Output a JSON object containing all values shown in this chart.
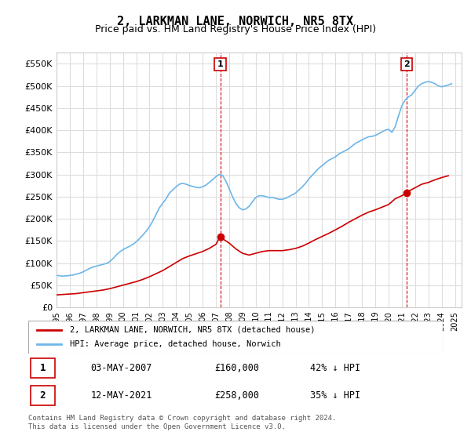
{
  "title": "2, LARKMAN LANE, NORWICH, NR5 8TX",
  "subtitle": "Price paid vs. HM Land Registry's House Price Index (HPI)",
  "ylabel": "",
  "ylim": [
    0,
    575000
  ],
  "yticks": [
    0,
    50000,
    100000,
    150000,
    200000,
    250000,
    300000,
    350000,
    400000,
    450000,
    500000,
    550000
  ],
  "ytick_labels": [
    "£0",
    "£50K",
    "£100K",
    "£150K",
    "£200K",
    "£250K",
    "£300K",
    "£350K",
    "£400K",
    "£450K",
    "£500K",
    "£550K"
  ],
  "xlim_start": 1995.0,
  "xlim_end": 2025.5,
  "hpi_color": "#6db6e8",
  "property_color": "#cc0000",
  "marker1_year": 2007.33,
  "marker1_price": 160000,
  "marker1_label": "1",
  "marker1_date": "03-MAY-2007",
  "marker1_amount": "£160,000",
  "marker1_pct": "42% ↓ HPI",
  "marker2_year": 2021.36,
  "marker2_price": 258000,
  "marker2_label": "2",
  "marker2_date": "12-MAY-2021",
  "marker2_amount": "£258,000",
  "marker2_pct": "35% ↓ HPI",
  "legend_line1": "2, LARKMAN LANE, NORWICH, NR5 8TX (detached house)",
  "legend_line2": "HPI: Average price, detached house, Norwich",
  "footer": "Contains HM Land Registry data © Crown copyright and database right 2024.\nThis data is licensed under the Open Government Licence v3.0.",
  "background_color": "#ffffff",
  "grid_color": "#dddddd",
  "hpi_data": {
    "years": [
      1995.0,
      1995.25,
      1995.5,
      1995.75,
      1996.0,
      1996.25,
      1996.5,
      1996.75,
      1997.0,
      1997.25,
      1997.5,
      1997.75,
      1998.0,
      1998.25,
      1998.5,
      1998.75,
      1999.0,
      1999.25,
      1999.5,
      1999.75,
      2000.0,
      2000.25,
      2000.5,
      2000.75,
      2001.0,
      2001.25,
      2001.5,
      2001.75,
      2002.0,
      2002.25,
      2002.5,
      2002.75,
      2003.0,
      2003.25,
      2003.5,
      2003.75,
      2004.0,
      2004.25,
      2004.5,
      2004.75,
      2005.0,
      2005.25,
      2005.5,
      2005.75,
      2006.0,
      2006.25,
      2006.5,
      2006.75,
      2007.0,
      2007.25,
      2007.5,
      2007.75,
      2008.0,
      2008.25,
      2008.5,
      2008.75,
      2009.0,
      2009.25,
      2009.5,
      2009.75,
      2010.0,
      2010.25,
      2010.5,
      2010.75,
      2011.0,
      2011.25,
      2011.5,
      2011.75,
      2012.0,
      2012.25,
      2012.5,
      2012.75,
      2013.0,
      2013.25,
      2013.5,
      2013.75,
      2014.0,
      2014.25,
      2014.5,
      2014.75,
      2015.0,
      2015.25,
      2015.5,
      2015.75,
      2016.0,
      2016.25,
      2016.5,
      2016.75,
      2017.0,
      2017.25,
      2017.5,
      2017.75,
      2018.0,
      2018.25,
      2018.5,
      2018.75,
      2019.0,
      2019.25,
      2019.5,
      2019.75,
      2020.0,
      2020.25,
      2020.5,
      2020.75,
      2021.0,
      2021.25,
      2021.5,
      2021.75,
      2022.0,
      2022.25,
      2022.5,
      2022.75,
      2023.0,
      2023.25,
      2023.5,
      2023.75,
      2024.0,
      2024.25,
      2024.5,
      2024.75
    ],
    "values": [
      72000,
      71000,
      70500,
      71000,
      72000,
      73000,
      75000,
      77000,
      80000,
      84000,
      88000,
      91000,
      93000,
      95000,
      97000,
      99000,
      103000,
      110000,
      118000,
      125000,
      130000,
      134000,
      138000,
      142000,
      148000,
      155000,
      163000,
      172000,
      182000,
      195000,
      210000,
      225000,
      235000,
      245000,
      258000,
      265000,
      272000,
      278000,
      280000,
      278000,
      275000,
      273000,
      271000,
      270000,
      272000,
      276000,
      282000,
      288000,
      295000,
      300000,
      298000,
      285000,
      268000,
      250000,
      235000,
      225000,
      220000,
      222000,
      228000,
      238000,
      248000,
      252000,
      252000,
      250000,
      248000,
      248000,
      246000,
      244000,
      244000,
      246000,
      250000,
      254000,
      258000,
      265000,
      272000,
      280000,
      290000,
      298000,
      306000,
      314000,
      320000,
      326000,
      332000,
      336000,
      340000,
      346000,
      350000,
      354000,
      358000,
      364000,
      370000,
      374000,
      378000,
      382000,
      385000,
      386000,
      388000,
      392000,
      396000,
      400000,
      402000,
      395000,
      408000,
      432000,
      455000,
      468000,
      475000,
      480000,
      490000,
      500000,
      505000,
      508000,
      510000,
      508000,
      505000,
      500000,
      498000,
      500000,
      502000,
      505000
    ]
  },
  "property_data": {
    "years": [
      1995.0,
      1995.5,
      1996.0,
      1996.5,
      1997.0,
      1997.5,
      1998.0,
      1998.5,
      1999.0,
      1999.5,
      2000.0,
      2000.5,
      2001.0,
      2001.5,
      2002.0,
      2002.5,
      2003.0,
      2003.5,
      2004.0,
      2004.5,
      2005.0,
      2005.5,
      2006.0,
      2006.5,
      2007.0,
      2007.33,
      2007.5,
      2008.0,
      2008.5,
      2009.0,
      2009.5,
      2010.0,
      2010.5,
      2011.0,
      2011.5,
      2012.0,
      2012.5,
      2013.0,
      2013.5,
      2014.0,
      2014.5,
      2015.0,
      2015.5,
      2016.0,
      2016.5,
      2017.0,
      2017.5,
      2018.0,
      2018.5,
      2019.0,
      2019.5,
      2020.0,
      2020.5,
      2021.0,
      2021.36,
      2021.5,
      2022.0,
      2022.5,
      2023.0,
      2023.5,
      2024.0,
      2024.5
    ],
    "values": [
      28000,
      29000,
      30000,
      31000,
      33000,
      35000,
      37000,
      39000,
      42000,
      46000,
      50000,
      54000,
      58000,
      63000,
      69000,
      76000,
      83000,
      92000,
      101000,
      110000,
      116000,
      121000,
      126000,
      133000,
      142000,
      160000,
      155000,
      145000,
      132000,
      122000,
      118000,
      122000,
      126000,
      128000,
      128000,
      128000,
      130000,
      133000,
      138000,
      145000,
      153000,
      160000,
      167000,
      175000,
      183000,
      192000,
      200000,
      208000,
      215000,
      220000,
      226000,
      232000,
      245000,
      252000,
      258000,
      262000,
      270000,
      278000,
      282000,
      288000,
      293000,
      297000
    ]
  }
}
